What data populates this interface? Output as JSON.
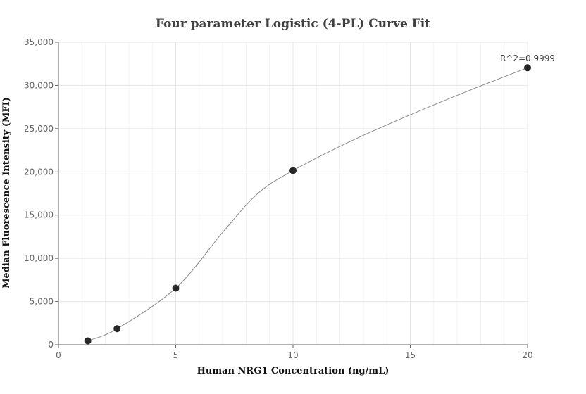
{
  "chart_data": {
    "type": "scatter",
    "title": "Four parameter Logistic (4-PL) Curve Fit",
    "xlabel": "Human NRG1 Concentration (ng/mL)",
    "ylabel": "Median Fluorescence Intensity (MFI)",
    "xlim": [
      0,
      20
    ],
    "ylim": [
      0,
      35000
    ],
    "x_ticks": [
      0,
      5,
      10,
      15,
      20
    ],
    "x_tick_labels": [
      "0",
      "5",
      "10",
      "15",
      "20"
    ],
    "y_ticks": [
      0,
      5000,
      10000,
      15000,
      20000,
      25000,
      30000,
      35000
    ],
    "y_tick_labels": [
      "0",
      "5,000",
      "10,000",
      "15,000",
      "20,000",
      "25,000",
      "30,000",
      "35,000"
    ],
    "grid": true,
    "points": {
      "x": [
        1.25,
        2.5,
        5,
        10,
        20
      ],
      "y": [
        450,
        1850,
        6550,
        20150,
        32050
      ]
    },
    "fit_curve": {
      "x": [
        1.25,
        2.5,
        5,
        7,
        8.5,
        10,
        12.5,
        15,
        17.5,
        20
      ],
      "y": [
        450,
        1850,
        6550,
        13000,
        17500,
        20150,
        23600,
        26600,
        29400,
        32050
      ]
    },
    "annotation": "R^2=0.9999",
    "colors": {
      "point": "#262626",
      "curve": "#888888",
      "grid": "#e6e6e6",
      "axis": "#666666"
    }
  }
}
